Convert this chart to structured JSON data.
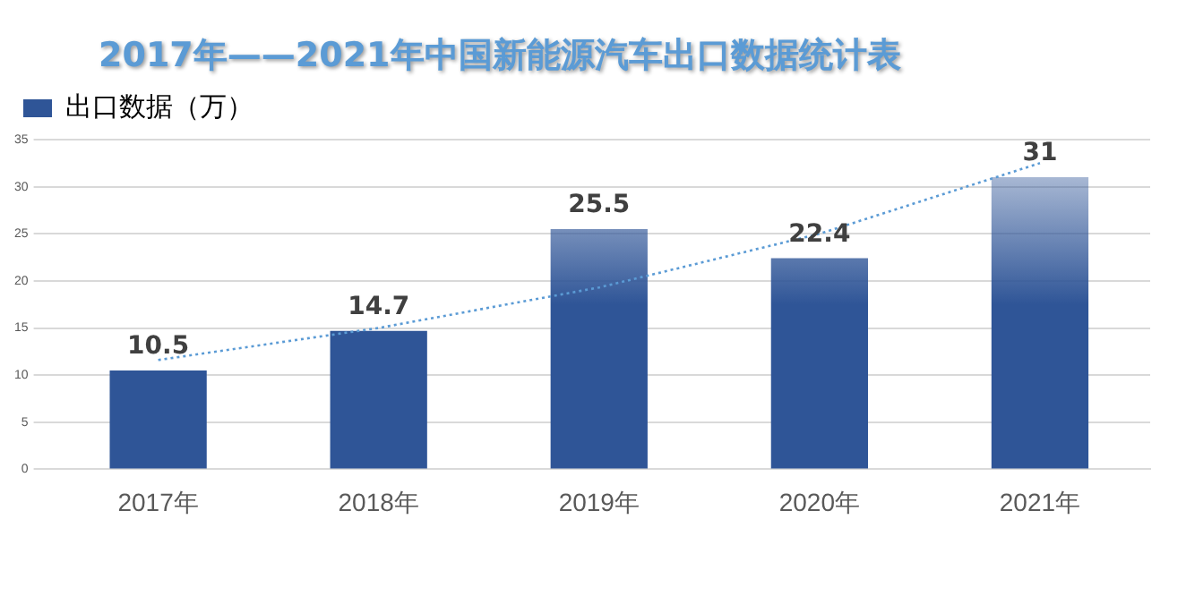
{
  "chart_data": {
    "type": "bar",
    "title": "2017年——2021年中国新能源汽车出口数据统计表",
    "categories": [
      "2017年",
      "2018年",
      "2019年",
      "2020年",
      "2021年"
    ],
    "series": [
      {
        "name": "出口数据（万）",
        "color": "#2f5597",
        "values": [
          10.5,
          14.7,
          25.5,
          22.4,
          31
        ],
        "value_labels": [
          "10.5",
          "14.7",
          "25.5",
          "22.4",
          "31"
        ]
      },
      {
        "type": "line",
        "color": "#5b9bd5",
        "line_style": "dotted",
        "marker": "none",
        "values": [
          11.6,
          15,
          19.3,
          25,
          32.5
        ]
      }
    ],
    "ylim": [
      0,
      35
    ],
    "yticks": [
      0,
      5,
      10,
      15,
      20,
      25,
      30,
      35
    ],
    "grid": "y",
    "legend": "top left"
  }
}
